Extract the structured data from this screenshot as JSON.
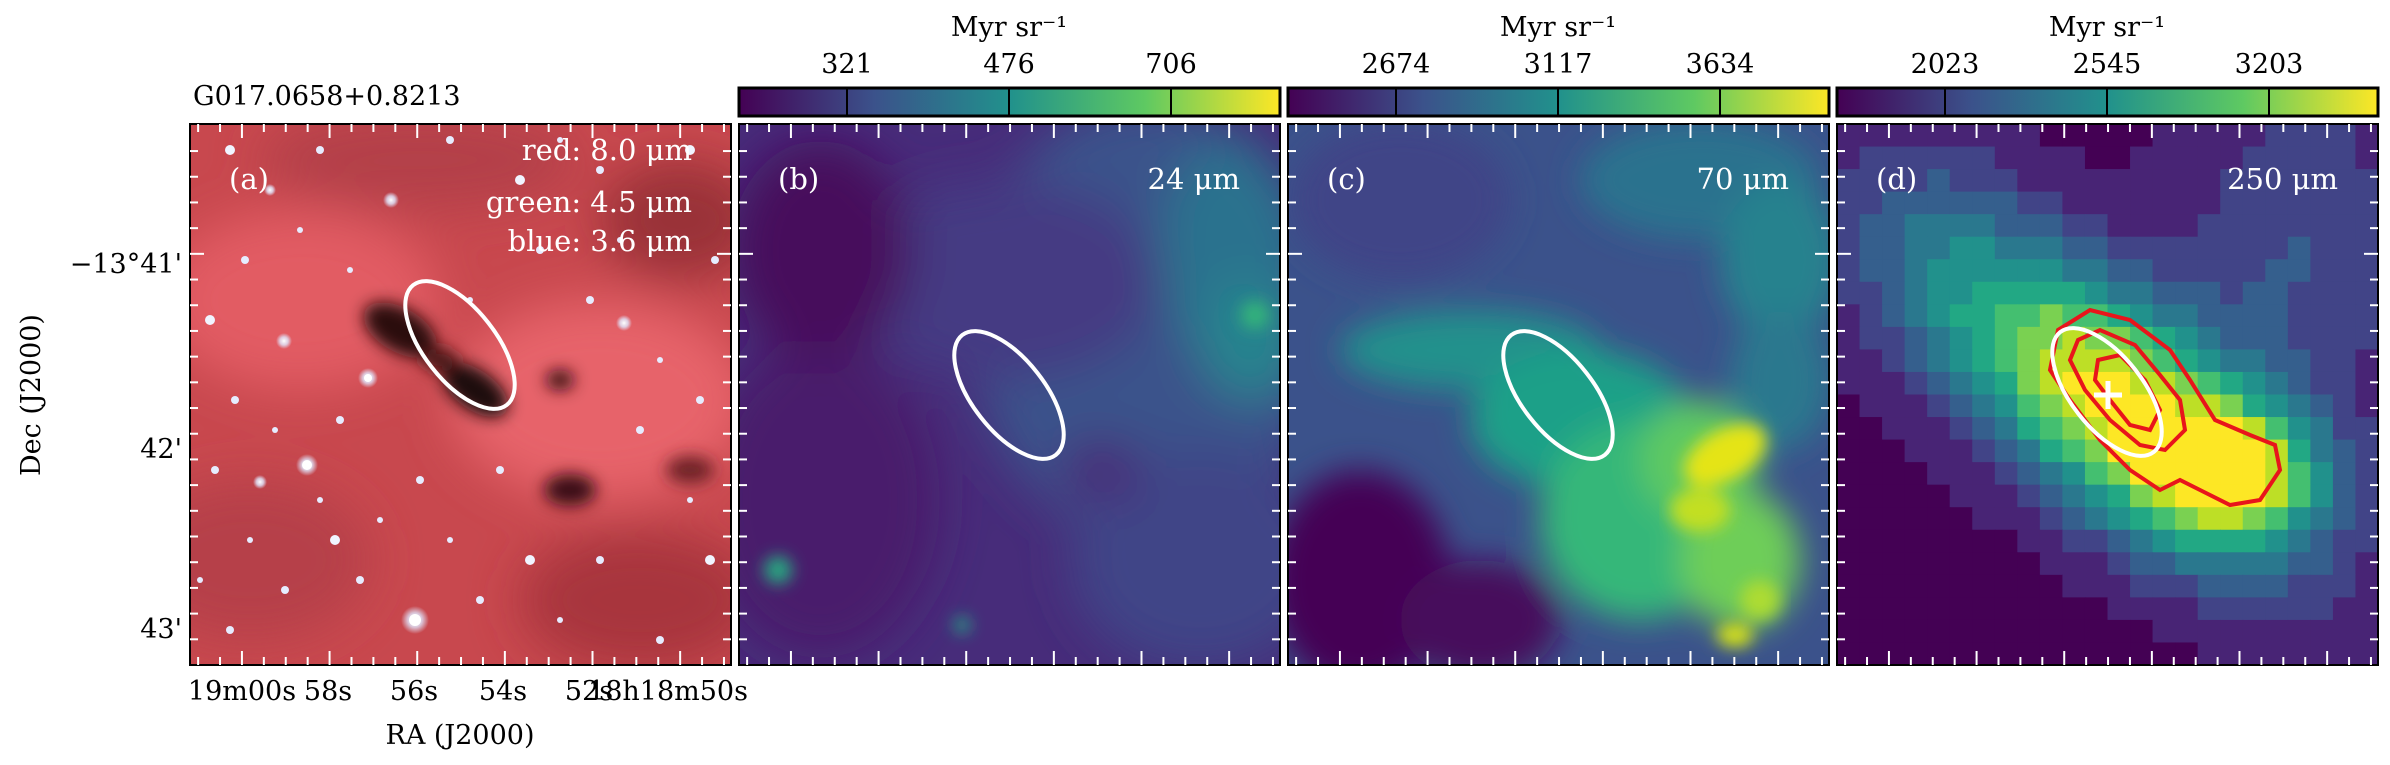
{
  "source_name": "G017.0658+0.8213",
  "axes": {
    "ylabel": "Dec (J2000)",
    "xlabel": "RA (J2000)",
    "dec_ticks": [
      "−13°41'",
      "42'",
      "43'"
    ],
    "ra_ticks": [
      "19m00s",
      "58s",
      "56s",
      "54s",
      "52s",
      "18h18m50s"
    ]
  },
  "panels": [
    {
      "id": "a",
      "label": "(a)",
      "legend": [
        "red: 8.0 μm",
        "green: 4.5 μm",
        "blue: 3.6 μm"
      ],
      "colorbar": null
    },
    {
      "id": "b",
      "label": "(b)",
      "band": "24 μm",
      "colorbar": {
        "unit": "Myr sr⁻¹",
        "ticks": [
          "321",
          "476",
          "706"
        ],
        "colormap": "viridis"
      }
    },
    {
      "id": "c",
      "label": "(c)",
      "band": "70 μm",
      "colorbar": {
        "unit": "Myr sr⁻¹",
        "ticks": [
          "2674",
          "3117",
          "3634"
        ],
        "colormap": "viridis"
      }
    },
    {
      "id": "d",
      "label": "(d)",
      "band": "250 μm",
      "colorbar": {
        "unit": "Myr sr⁻¹",
        "ticks": [
          "2023",
          "2545",
          "3203"
        ],
        "colormap": "viridis"
      }
    }
  ],
  "colors": {
    "viridis_dark": "#440154",
    "viridis_blue": "#3b528b",
    "viridis_teal": "#21918c",
    "viridis_green": "#5ec962",
    "viridis_yellow": "#fde725",
    "ellipse": "#ffffff",
    "contour": "#e8151b",
    "marker": "#ffffff"
  }
}
